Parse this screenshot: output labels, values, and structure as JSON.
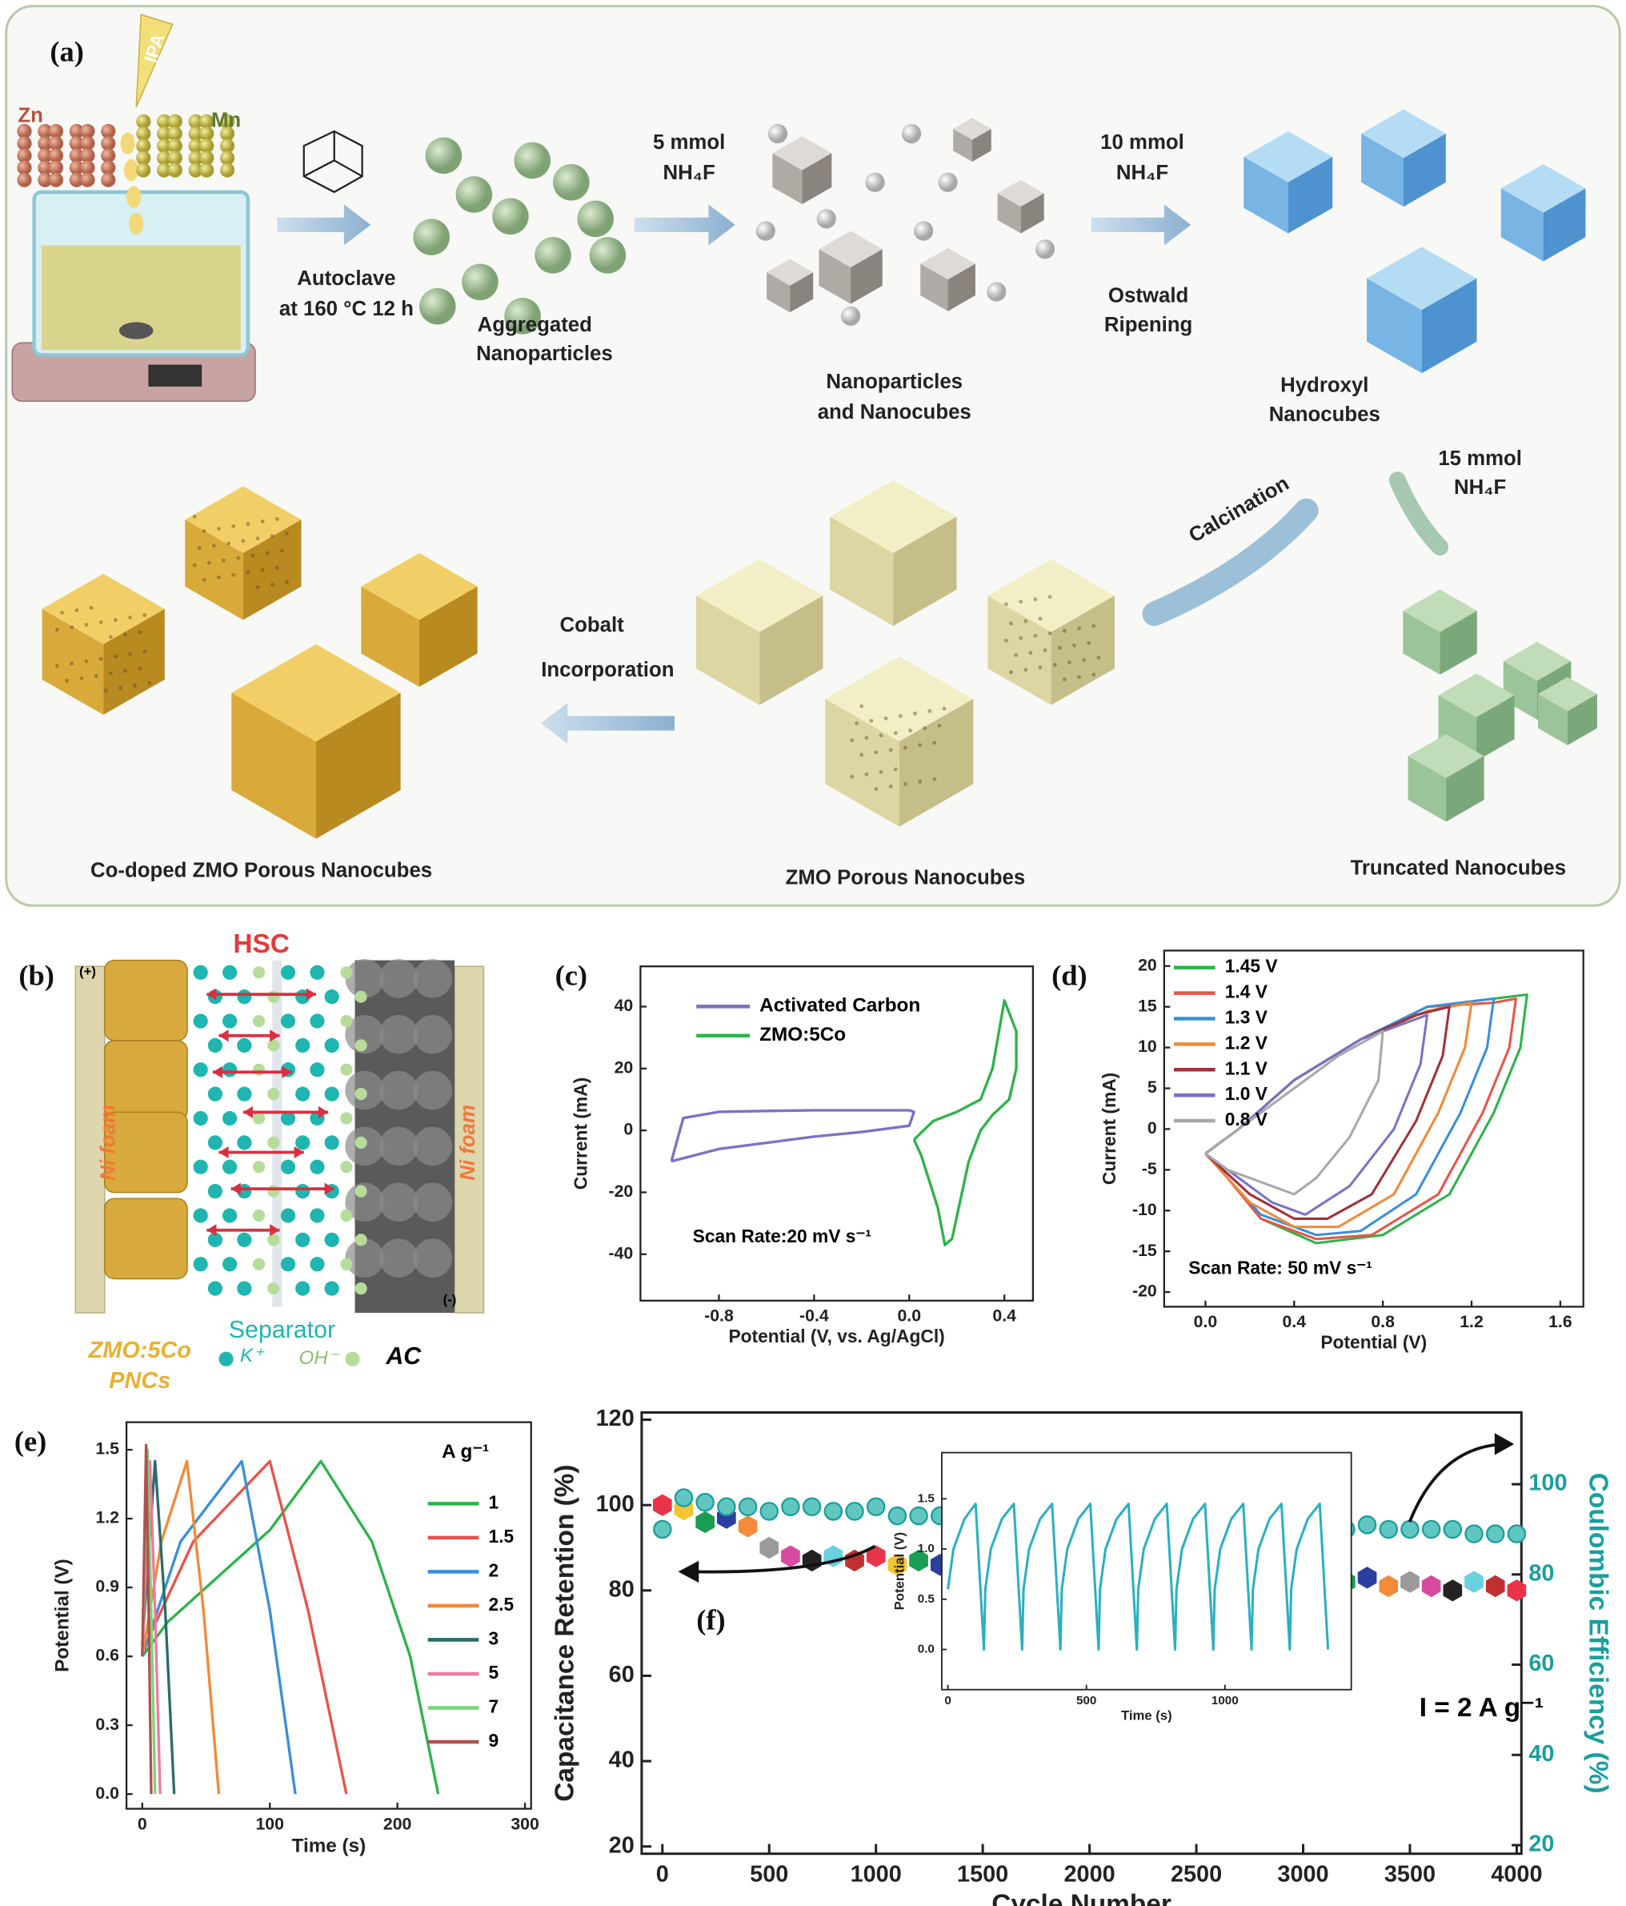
{
  "panel_a": {
    "label": "(a)",
    "zn": "Zn",
    "ipa": "IPA",
    "mn": "Mn",
    "step1": [
      "Autoclave",
      "at 160 °C 12 h"
    ],
    "product1": [
      "Aggregated",
      "Nanoparticles"
    ],
    "step2": [
      "5 mmol",
      "NH₄F"
    ],
    "product2": [
      "Nanoparticles",
      "and Nanocubes"
    ],
    "step3": [
      "10 mmol",
      "NH₄F"
    ],
    "step3b": [
      "Ostwald",
      "Ripening"
    ],
    "product3": [
      "Hydroxyl",
      "Nanocubes"
    ],
    "step4": [
      "15 mmol",
      "NH₄F"
    ],
    "product4": "Truncated Nanocubes",
    "step5": "Calcination",
    "product5": "ZMO Porous Nanocubes",
    "step6": [
      "Cobalt",
      "Incorporation"
    ],
    "product6": "Co-doped ZMO Porous Nanocubes"
  },
  "panel_b": {
    "label": "(b)",
    "title": "HSC",
    "plus": "(+)",
    "minus": "(-)",
    "ni_foam_left": "Ni foam",
    "ni_foam_right": "Ni foam",
    "separator": "Separator",
    "cathode": [
      "ZMO:5Co",
      "PNCs"
    ],
    "k_ion": "K⁺",
    "oh_ion": "OH⁻",
    "anode": "AC"
  },
  "chart_data": [
    {
      "type": "line",
      "panel_label": "(c)",
      "xlabel": "Potential (V, vs. Ag/AgCl)",
      "ylabel": "Current (mA)",
      "annotation": "Scan Rate:20 mV s⁻¹",
      "xlim": [
        -1.13,
        0.52
      ],
      "ylim": [
        -55,
        53
      ],
      "xticks": [
        -0.8,
        -0.4,
        {
          "value": 0,
          "label": "0.0"
        },
        0.4
      ],
      "yticks": [
        -40,
        -20,
        0,
        20,
        40
      ],
      "legend": "upper left",
      "series": [
        {
          "name": "Activated Carbon",
          "color": "#7b72c4",
          "x": [
            -1.0,
            -0.8,
            -0.6,
            -0.4,
            -0.2,
            0.0,
            0.02,
            0.0,
            -0.2,
            -0.4,
            -0.6,
            -0.8,
            -0.95,
            -1.0
          ],
          "values": [
            -10,
            -6,
            -4,
            -2,
            -0.5,
            1.5,
            6,
            6.5,
            6.5,
            6.5,
            6.3,
            6,
            4,
            -10
          ]
        },
        {
          "name": "ZMO:5Co",
          "color": "#2db34a",
          "x": [
            0.02,
            0.1,
            0.2,
            0.3,
            0.35,
            0.4,
            0.45,
            0.45,
            0.42,
            0.35,
            0.3,
            0.25,
            0.18,
            0.15,
            0.12,
            0.05,
            0.02
          ],
          "values": [
            -3,
            3,
            6,
            10,
            20,
            42,
            32,
            20,
            10,
            5,
            0,
            -10,
            -35,
            -37,
            -25,
            -8,
            -3
          ]
        }
      ]
    },
    {
      "type": "line",
      "panel_label": "(d)",
      "xlabel": "Potential (V)",
      "ylabel": "Current (mA)",
      "annotation": "Scan Rate: 50 mV s⁻¹",
      "xlim": [
        -0.186,
        1.704
      ],
      "ylim": [
        -21.8,
        21.9
      ],
      "xticks": [
        {
          "value": 0,
          "label": "0.0"
        },
        0.4,
        0.8,
        1.2,
        1.6
      ],
      "yticks": [
        -20,
        -15,
        -10,
        -5,
        0,
        5,
        10,
        15,
        20
      ],
      "legend": "upper left",
      "series": [
        {
          "name": "1.45 V",
          "color": "#2db34a",
          "x": [
            0,
            0.15,
            0.4,
            0.7,
            1.0,
            1.3,
            1.45,
            1.42,
            1.3,
            1.1,
            0.8,
            0.5,
            0.25,
            0.1,
            0
          ],
          "values": [
            -3,
            0,
            6,
            11,
            15,
            16,
            16.5,
            10,
            2,
            -8,
            -13,
            -14,
            -11,
            -6,
            -3
          ]
        },
        {
          "name": "1.4 V",
          "color": "#e8544a",
          "x": [
            0,
            0.15,
            0.4,
            0.7,
            1.0,
            1.3,
            1.4,
            1.37,
            1.25,
            1.05,
            0.75,
            0.5,
            0.25,
            0.1,
            0
          ],
          "values": [
            -3,
            0,
            6,
            11,
            15,
            15.5,
            16,
            10,
            2,
            -8,
            -13,
            -13.5,
            -11,
            -6,
            -3
          ]
        },
        {
          "name": "1.3 V",
          "color": "#3a8fd8",
          "x": [
            0,
            0.15,
            0.4,
            0.7,
            1.0,
            1.3,
            1.27,
            1.15,
            0.95,
            0.7,
            0.5,
            0.25,
            0.1,
            0
          ],
          "values": [
            -3,
            0,
            6,
            11,
            15,
            16,
            10,
            2,
            -8,
            -12.5,
            -13,
            -10.5,
            -6,
            -3
          ]
        },
        {
          "name": "1.2 V",
          "color": "#f08a3a",
          "x": [
            0,
            0.15,
            0.4,
            0.7,
            1.0,
            1.2,
            1.17,
            1.05,
            0.85,
            0.6,
            0.4,
            0.2,
            0.1,
            0
          ],
          "values": [
            -3,
            0,
            6,
            11,
            14.5,
            15.5,
            10,
            2,
            -8,
            -12,
            -12,
            -9,
            -6,
            -3
          ]
        },
        {
          "name": "1.1 V",
          "color": "#a0303a",
          "x": [
            0,
            0.15,
            0.4,
            0.7,
            0.95,
            1.1,
            1.07,
            0.95,
            0.75,
            0.55,
            0.4,
            0.2,
            0.1,
            0
          ],
          "values": [
            -3,
            0,
            6,
            11,
            14,
            15,
            9,
            1,
            -8,
            -11,
            -11,
            -8,
            -5.5,
            -3
          ]
        },
        {
          "name": "1.0 V",
          "color": "#7b72c4",
          "x": [
            0,
            0.15,
            0.4,
            0.7,
            0.9,
            1.0,
            0.97,
            0.85,
            0.65,
            0.45,
            0.3,
            0.15,
            0
          ],
          "values": [
            -3,
            0,
            6,
            11,
            13,
            14,
            8,
            0,
            -7,
            -10.5,
            -9,
            -6,
            -3
          ]
        },
        {
          "name": "0.8 V",
          "color": "#a8a8a8",
          "x": [
            0,
            0.15,
            0.4,
            0.6,
            0.8,
            0.78,
            0.65,
            0.5,
            0.4,
            0.3,
            0.1,
            0
          ],
          "values": [
            -3,
            0,
            5,
            9,
            12,
            6,
            -1,
            -6,
            -8,
            -7,
            -5,
            -3
          ]
        }
      ]
    },
    {
      "type": "line",
      "panel_label": "(e)",
      "xlabel": "Time (s)",
      "ylabel": "Potential (V)",
      "legend_title": "A g⁻¹",
      "xlim": [
        -12.4,
        304.8
      ],
      "ylim": [
        -0.064,
        1.62
      ],
      "xticks": [
        0,
        100,
        200,
        300
      ],
      "yticks": [
        {
          "value": 0,
          "label": "0.0"
        },
        0.3,
        0.6,
        0.9,
        1.2,
        1.5
      ],
      "legend": "outside right",
      "series": [
        {
          "name": "1",
          "color": "#2db34a",
          "x": [
            0,
            20,
            60,
            100,
            140,
            180,
            210,
            232
          ],
          "values": [
            0.6,
            0.75,
            0.95,
            1.15,
            1.45,
            1.1,
            0.6,
            0
          ]
        },
        {
          "name": "1.5",
          "color": "#e8544a",
          "x": [
            0,
            40,
            100,
            130,
            160
          ],
          "values": [
            0.62,
            1.1,
            1.45,
            0.8,
            0
          ]
        },
        {
          "name": "2",
          "color": "#3a8fd8",
          "x": [
            0,
            30,
            78,
            100,
            120
          ],
          "values": [
            0.6,
            1.1,
            1.45,
            0.8,
            0
          ]
        },
        {
          "name": "2.5",
          "color": "#f08a3a",
          "x": [
            0,
            15,
            35,
            48,
            60
          ],
          "values": [
            0.6,
            1.1,
            1.45,
            0.8,
            0
          ]
        },
        {
          "name": "3",
          "color": "#2a6b6b",
          "x": [
            0,
            10,
            18,
            25
          ],
          "values": [
            0.65,
            1.45,
            0.8,
            0
          ]
        },
        {
          "name": "5",
          "color": "#f07aa0",
          "x": [
            0,
            6,
            10,
            14
          ],
          "values": [
            0.6,
            1.45,
            0.8,
            0
          ]
        },
        {
          "name": "7",
          "color": "#7ad47a",
          "x": [
            0,
            4,
            7,
            10
          ],
          "values": [
            0.6,
            1.5,
            0.8,
            0
          ]
        },
        {
          "name": "9",
          "color": "#b05050",
          "x": [
            0,
            3,
            5,
            7
          ],
          "values": [
            0.6,
            1.52,
            0.8,
            0
          ]
        }
      ]
    },
    {
      "type": "scatter",
      "panel_label": "(f)",
      "xlabel": "Cycle Number",
      "ylabel": "Capacitance Retention (%)",
      "y2label": "Coulombic Efficiency (%)",
      "annotation": "I = 2 A g⁻¹",
      "xlim": [
        -97,
        4022
      ],
      "ylim": [
        18.3,
        121.7
      ],
      "y2lim": [
        18.1,
        115.9
      ],
      "xticks": [
        0,
        500,
        1000,
        1500,
        2000,
        2500,
        3000,
        3500,
        4000
      ],
      "yticks": [
        20,
        40,
        60,
        80,
        100,
        120
      ],
      "y2ticks": [
        20,
        40,
        60,
        80,
        100
      ],
      "x": [
        0,
        100,
        200,
        300,
        400,
        500,
        600,
        700,
        800,
        900,
        1000,
        1100,
        1200,
        1300,
        1400,
        1500,
        1600,
        1700,
        1800,
        1900,
        2000,
        2100,
        2200,
        2300,
        2400,
        2500,
        2600,
        2700,
        2800,
        2900,
        3000,
        3100,
        3200,
        3300,
        3400,
        3500,
        3600,
        3700,
        3800,
        3900,
        4000
      ],
      "series": [
        {
          "colors": [
            "#e8344a",
            "#f2c530",
            "#1a9e55",
            "#2c3e9e",
            "#f28c3a",
            "#9a9a9a",
            "#d64ba0",
            "#222222",
            "#6ad0e0",
            "#c03030"
          ],
          "values": [
            100,
            99,
            96,
            97,
            95,
            90,
            88,
            87,
            88,
            87,
            88,
            86,
            87,
            86,
            87,
            86,
            85,
            86,
            85,
            86,
            85,
            87,
            85,
            86,
            85,
            86,
            84,
            85,
            83,
            84,
            82,
            84,
            82,
            83,
            81,
            82,
            81,
            80,
            82,
            81,
            80
          ]
        },
        {
          "color": "#1a9e9e",
          "axis": "y2",
          "values": [
            90,
            97,
            96,
            95,
            95,
            94,
            95,
            95,
            94,
            94,
            95,
            93,
            93,
            93,
            94,
            92,
            92,
            93,
            92,
            93,
            94,
            91,
            91,
            92,
            92,
            91,
            92,
            91,
            91,
            91,
            91,
            90,
            90,
            91,
            90,
            90,
            90,
            90,
            89,
            89,
            89
          ]
        }
      ],
      "inset": {
        "type": "line",
        "xlabel": "Time (s)",
        "ylabel": "Potential (V)",
        "xlim": [
          -22,
          1456
        ],
        "ylim": [
          -0.4,
          1.96
        ],
        "xticks": [
          0,
          500,
          1000
        ],
        "yticks": [
          {
            "value": 0,
            "label": "0.0"
          },
          0.5,
          {
            "value": 1,
            "label": "1.0"
          },
          1.5
        ],
        "series": [
          {
            "color": "#2bb0c0",
            "x": [
              0,
              20,
              60,
              100,
              130,
              135,
              155,
              195,
              238,
              268,
              273,
              293,
              333,
              376,
              406,
              411,
              431,
              471,
              514,
              544,
              549,
              569,
              609,
              652,
              682,
              687,
              707,
              747,
              790,
              820,
              825,
              845,
              885,
              928,
              958,
              963,
              983,
              1023,
              1066,
              1096,
              1101,
              1121,
              1161,
              1204,
              1234,
              1239,
              1259,
              1299,
              1342,
              1372
            ],
            "values": [
              0.6,
              1.0,
              1.3,
              1.45,
              0,
              0.6,
              1.0,
              1.3,
              1.45,
              0,
              0.6,
              1.0,
              1.3,
              1.45,
              0,
              0.6,
              1.0,
              1.3,
              1.45,
              0,
              0.6,
              1.0,
              1.3,
              1.45,
              0,
              0.6,
              1.0,
              1.3,
              1.45,
              0,
              0.6,
              1.0,
              1.3,
              1.45,
              0,
              0.6,
              1.0,
              1.3,
              1.45,
              0,
              0.6,
              1.0,
              1.3,
              1.45,
              0,
              0.6,
              1.0,
              1.3,
              1.45,
              0
            ]
          }
        ]
      }
    }
  ]
}
